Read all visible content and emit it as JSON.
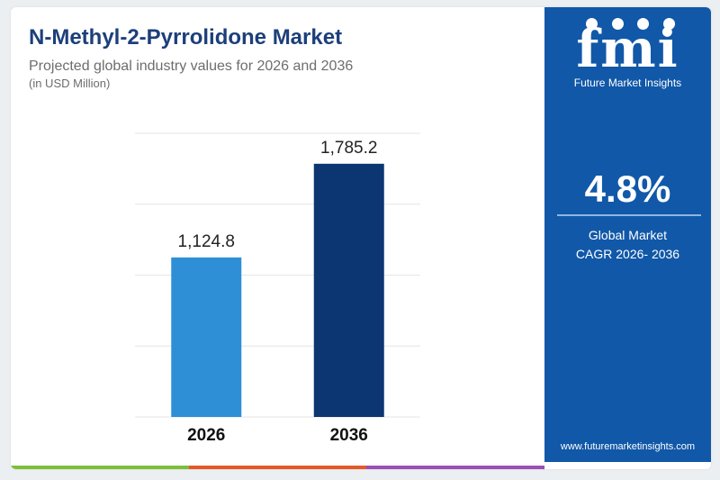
{
  "chart_data": {
    "type": "bar",
    "title": "N-Methyl-2-Pyrrolidone Market",
    "subtitle": "Projected global industry values for 2026 and 2036",
    "unit_label": "(in USD Million)",
    "categories": [
      "2026",
      "2036"
    ],
    "values": [
      1124.8,
      1785.2
    ],
    "value_labels": [
      "1,124.8",
      "1,785.2"
    ],
    "bar_colors": [
      "#2f8fd6",
      "#0c3672"
    ],
    "ylim": [
      0,
      2000
    ],
    "grid": true,
    "legend": "none"
  },
  "logo": {
    "text": "fmi",
    "subtitle": "Future Market Insights"
  },
  "cagr": {
    "value": "4.8%",
    "label_line1": "Global Market",
    "label_line2": "CAGR 2026- 2036"
  },
  "website": "www.futuremarketinsights.com",
  "colors": {
    "title": "#1d3f7a",
    "sidebar": "#1158a8",
    "bottom_stripe": [
      "#7bbf3a",
      "#e25a2a",
      "#9b4fb5"
    ]
  }
}
